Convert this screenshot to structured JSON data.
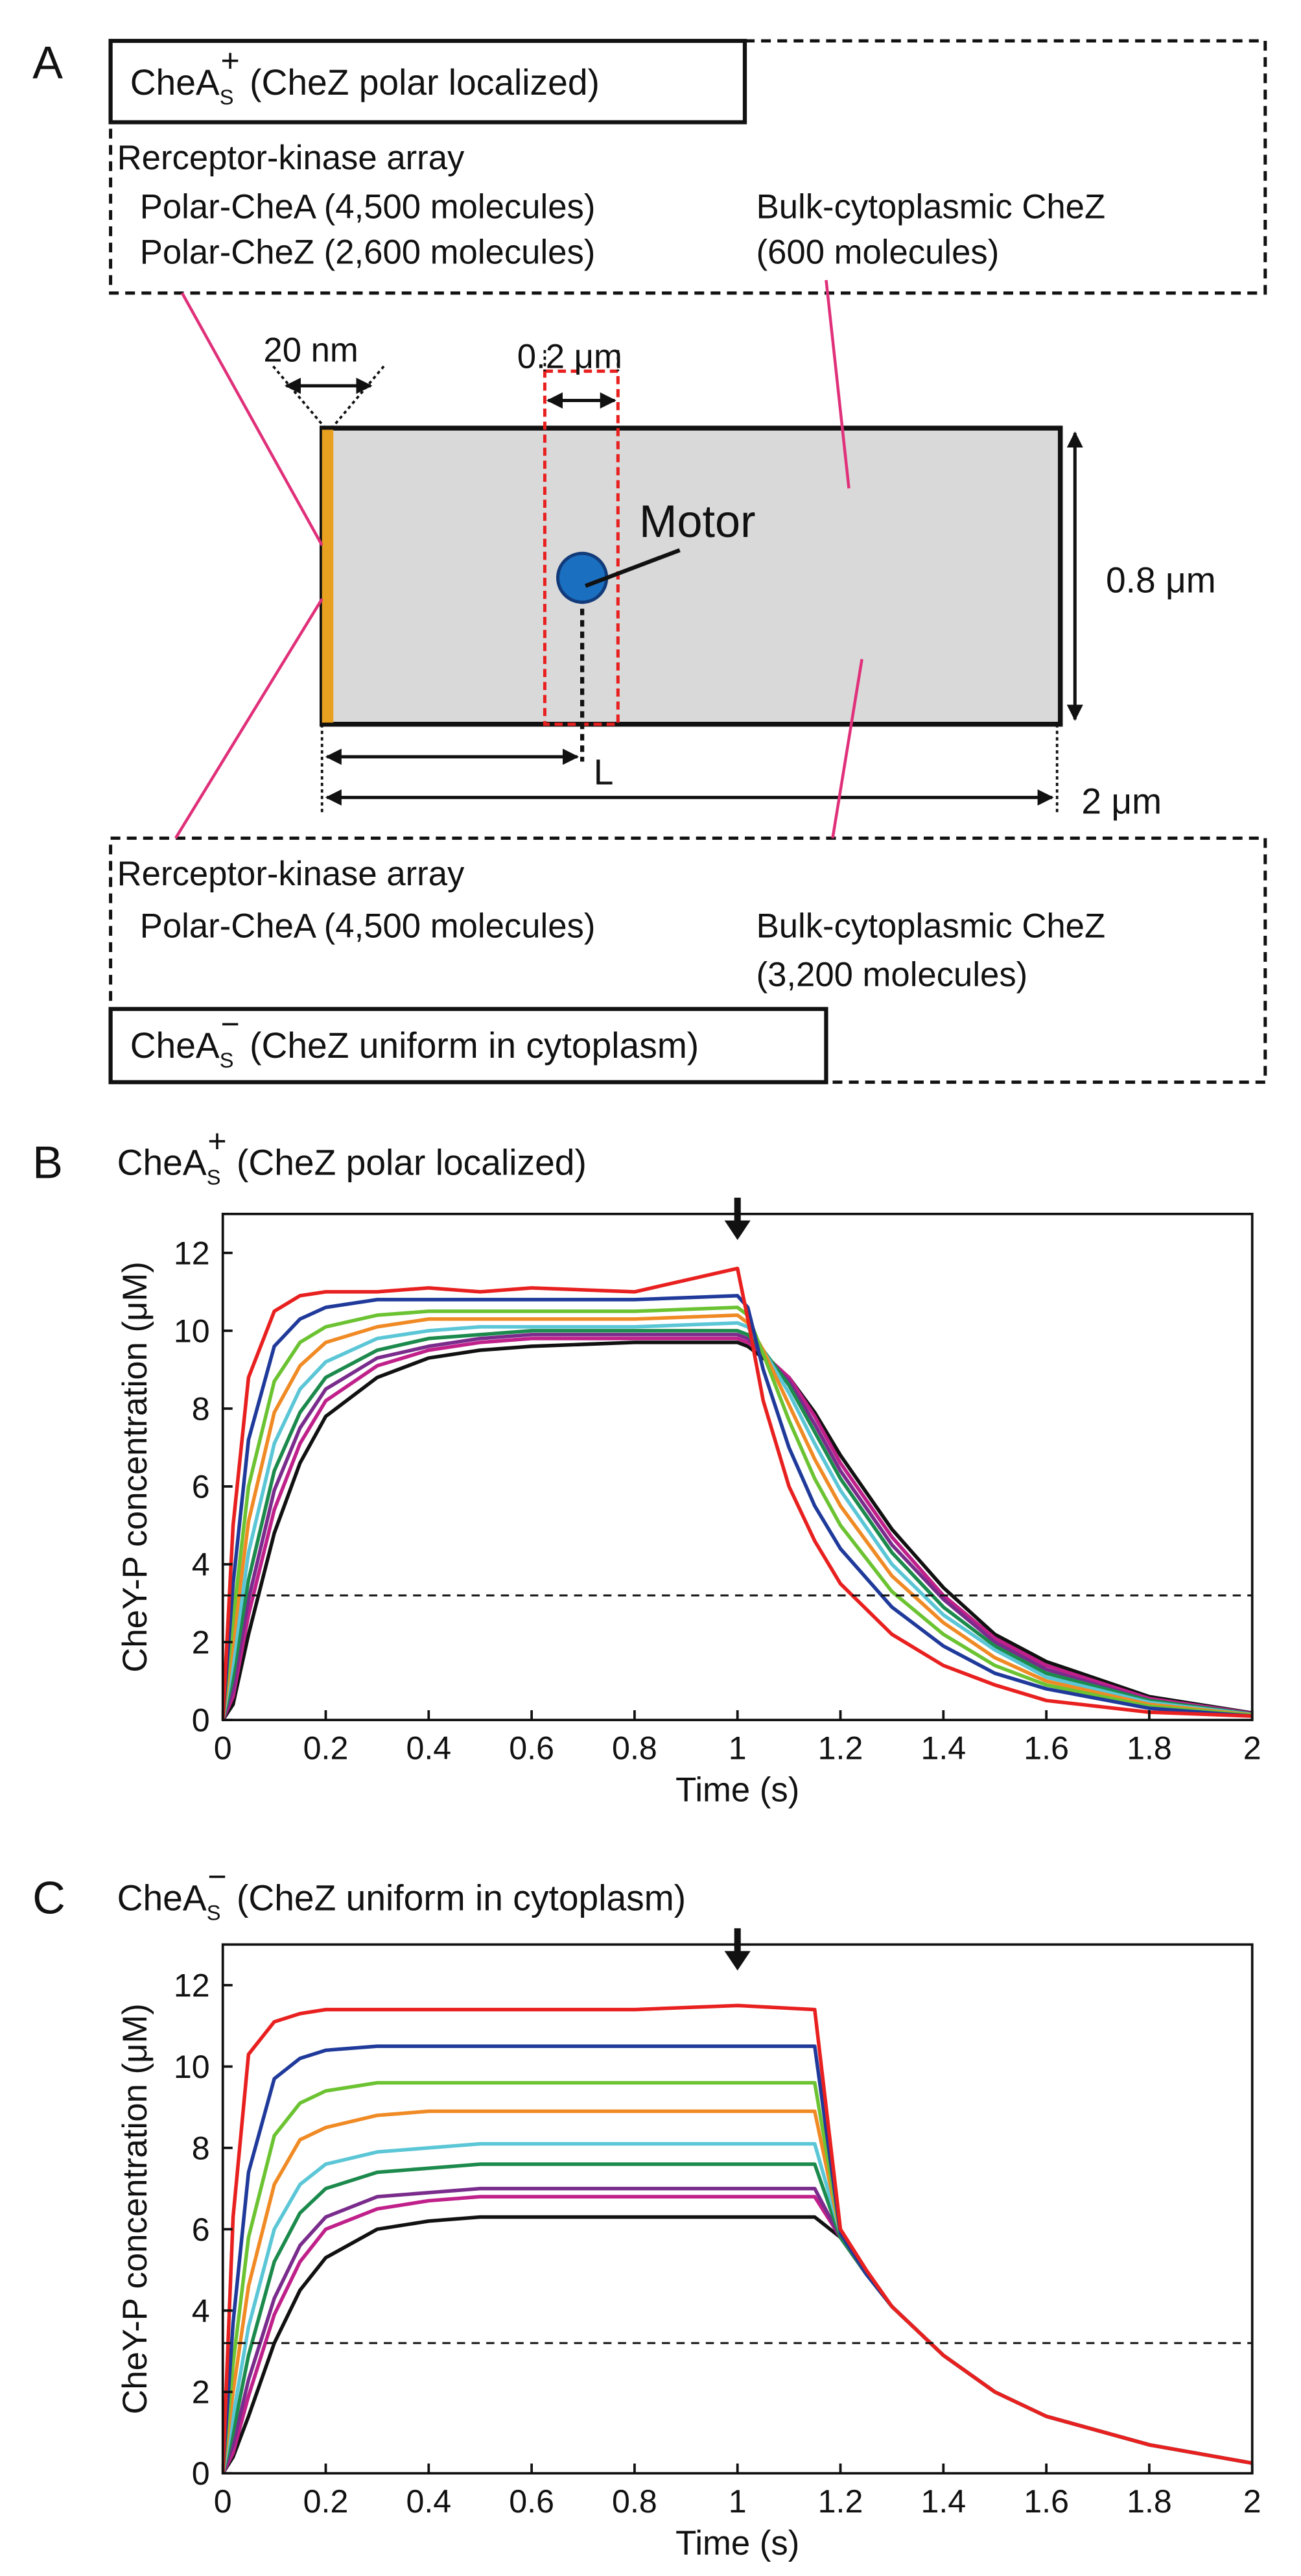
{
  "panel_a": {
    "label": "A",
    "top_box": {
      "title": "CheA",
      "title_sub": "S",
      "title_sup": "+",
      "title_rest": " (CheZ polar localized)",
      "array_label": "Rerceptor-kinase array",
      "polar_chea": "Polar-CheA (4,500 molecules)",
      "polar_chez": "Polar-CheZ (2,600 molecules)",
      "bulk_label": "Bulk-cytoplasmic CheZ",
      "bulk_count": "(600 molecules)"
    },
    "bottom_box": {
      "title": "CheA",
      "title_sub": "S",
      "title_sup": "−",
      "title_rest": " (CheZ uniform in cytoplasm)",
      "array_label": "Rerceptor-kinase array",
      "polar_chea": "Polar-CheA (4,500 molecules)",
      "bulk_label": "Bulk-cytoplasmic CheZ",
      "bulk_count": "(3,200 molecules)"
    },
    "array_width": "20 nm",
    "motor_window": "0.2 μm",
    "motor": "Motor",
    "cell_width": "0.8 μm",
    "distance": "L",
    "cell_length": "2 μm"
  },
  "chart_data": [
    {
      "type": "line",
      "label": "B",
      "title": "CheA",
      "title_sub": "S",
      "title_sup": "+",
      "title_rest": " (CheZ polar localized)",
      "xlabel": "Time (s)",
      "ylabel": "CheY-P concentration (μM)",
      "xlim": [
        0,
        2
      ],
      "ylim": [
        0,
        13
      ],
      "xticks": [
        0,
        0.2,
        0.4,
        0.6,
        0.8,
        1,
        1.2,
        1.4,
        1.6,
        1.8,
        2
      ],
      "yticks": [
        0,
        2,
        4,
        6,
        8,
        10,
        12
      ],
      "hline": 3.2,
      "arrow_x": 1.0,
      "x": [
        0,
        0.02,
        0.05,
        0.1,
        0.15,
        0.2,
        0.3,
        0.4,
        0.5,
        0.6,
        0.8,
        1.0,
        1.02,
        1.05,
        1.1,
        1.15,
        1.2,
        1.3,
        1.4,
        1.5,
        1.6,
        1.8,
        2.0
      ],
      "series": [
        {
          "color": "#111111",
          "values": [
            0,
            0.4,
            2.2,
            4.8,
            6.6,
            7.8,
            8.8,
            9.3,
            9.5,
            9.6,
            9.7,
            9.7,
            9.6,
            9.3,
            8.8,
            7.9,
            6.8,
            4.9,
            3.4,
            2.2,
            1.5,
            0.6,
            0.18
          ]
        },
        {
          "color": "#c0208a",
          "values": [
            0,
            0.6,
            2.7,
            5.4,
            7.1,
            8.2,
            9.1,
            9.5,
            9.7,
            9.8,
            9.8,
            9.8,
            9.7,
            9.4,
            8.8,
            7.8,
            6.6,
            4.7,
            3.2,
            2.1,
            1.4,
            0.55,
            0.17
          ]
        },
        {
          "color": "#7a2c8c",
          "values": [
            0,
            0.8,
            3.1,
            5.9,
            7.5,
            8.5,
            9.3,
            9.6,
            9.8,
            9.9,
            9.9,
            9.9,
            9.8,
            9.4,
            8.7,
            7.6,
            6.4,
            4.5,
            3.1,
            2.0,
            1.3,
            0.5,
            0.16
          ]
        },
        {
          "color": "#1c8a4c",
          "values": [
            0,
            1.1,
            3.6,
            6.4,
            7.9,
            8.8,
            9.5,
            9.8,
            9.9,
            10.0,
            10.0,
            10.0,
            9.9,
            9.5,
            8.6,
            7.4,
            6.2,
            4.3,
            2.9,
            1.9,
            1.2,
            0.5,
            0.15
          ]
        },
        {
          "color": "#5bc6d6",
          "values": [
            0,
            1.5,
            4.3,
            7.1,
            8.5,
            9.2,
            9.8,
            10.0,
            10.1,
            10.1,
            10.1,
            10.2,
            10.1,
            9.5,
            8.4,
            7.1,
            5.9,
            4.0,
            2.7,
            1.8,
            1.1,
            0.45,
            0.14
          ]
        },
        {
          "color": "#f08a24",
          "values": [
            0,
            2.0,
            5.1,
            7.9,
            9.1,
            9.7,
            10.1,
            10.3,
            10.3,
            10.3,
            10.3,
            10.4,
            10.2,
            9.5,
            8.1,
            6.7,
            5.5,
            3.7,
            2.5,
            1.6,
            1.0,
            0.4,
            0.13
          ]
        },
        {
          "color": "#6cc332",
          "values": [
            0,
            2.6,
            6.0,
            8.7,
            9.7,
            10.1,
            10.4,
            10.5,
            10.5,
            10.5,
            10.5,
            10.6,
            10.4,
            9.4,
            7.7,
            6.2,
            5.0,
            3.3,
            2.2,
            1.4,
            0.9,
            0.35,
            0.12
          ]
        },
        {
          "color": "#1f3a9a",
          "values": [
            0,
            3.5,
            7.2,
            9.6,
            10.3,
            10.6,
            10.8,
            10.8,
            10.8,
            10.8,
            10.8,
            10.9,
            10.6,
            9.0,
            7.0,
            5.5,
            4.4,
            2.9,
            1.9,
            1.2,
            0.8,
            0.3,
            0.1
          ]
        },
        {
          "color": "#e8201f",
          "values": [
            0,
            5.0,
            8.8,
            10.5,
            10.9,
            11.0,
            11.0,
            11.1,
            11.0,
            11.1,
            11.0,
            11.6,
            10.3,
            8.2,
            6.0,
            4.6,
            3.5,
            2.2,
            1.4,
            0.9,
            0.5,
            0.2,
            0.1
          ]
        }
      ]
    },
    {
      "type": "line",
      "label": "C",
      "title": "CheA",
      "title_sub": "S",
      "title_sup": "−",
      "title_rest": " (CheZ uniform in cytoplasm)",
      "xlabel": "Time (s)",
      "ylabel": "CheY-P concentration (μM)",
      "xlim": [
        0,
        2
      ],
      "ylim": [
        0,
        13
      ],
      "xticks": [
        0,
        0.2,
        0.4,
        0.6,
        0.8,
        1,
        1.2,
        1.4,
        1.6,
        1.8,
        2
      ],
      "yticks": [
        0,
        2,
        4,
        6,
        8,
        10,
        12
      ],
      "hline": 3.2,
      "arrow_x": 1.0,
      "x": [
        0,
        0.02,
        0.05,
        0.1,
        0.15,
        0.2,
        0.3,
        0.4,
        0.5,
        0.6,
        0.8,
        1.0,
        1.15,
        1.2,
        1.25,
        1.3,
        1.4,
        1.5,
        1.6,
        1.8,
        2.0
      ],
      "series": [
        {
          "color": "#111111",
          "values": [
            0,
            0.4,
            1.4,
            3.2,
            4.5,
            5.3,
            6.0,
            6.2,
            6.3,
            6.3,
            6.3,
            6.3,
            6.3,
            5.8,
            4.9,
            4.1,
            2.9,
            2.0,
            1.4,
            0.7,
            0.25
          ]
        },
        {
          "color": "#c0208a",
          "values": [
            0,
            0.5,
            1.9,
            3.9,
            5.2,
            6.0,
            6.5,
            6.7,
            6.8,
            6.8,
            6.8,
            6.8,
            6.8,
            5.8,
            4.9,
            4.1,
            2.9,
            2.0,
            1.4,
            0.7,
            0.25
          ]
        },
        {
          "color": "#7a2c8c",
          "values": [
            0,
            0.7,
            2.3,
            4.3,
            5.6,
            6.3,
            6.8,
            6.9,
            7.0,
            7.0,
            7.0,
            7.0,
            7.0,
            5.8,
            4.9,
            4.1,
            2.9,
            2.0,
            1.4,
            0.7,
            0.25
          ]
        },
        {
          "color": "#1c8a4c",
          "values": [
            0,
            1.0,
            2.9,
            5.2,
            6.4,
            7.0,
            7.4,
            7.5,
            7.6,
            7.6,
            7.6,
            7.6,
            7.6,
            5.8,
            4.9,
            4.1,
            2.9,
            2.0,
            1.4,
            0.7,
            0.25
          ]
        },
        {
          "color": "#5bc6d6",
          "values": [
            0,
            1.4,
            3.6,
            6.0,
            7.1,
            7.6,
            7.9,
            8.0,
            8.1,
            8.1,
            8.1,
            8.1,
            8.1,
            5.9,
            4.9,
            4.1,
            2.9,
            2.0,
            1.4,
            0.7,
            0.25
          ]
        },
        {
          "color": "#f08a24",
          "values": [
            0,
            2.0,
            4.6,
            7.1,
            8.2,
            8.5,
            8.8,
            8.9,
            8.9,
            8.9,
            8.9,
            8.9,
            8.9,
            5.9,
            4.9,
            4.1,
            2.9,
            2.0,
            1.4,
            0.7,
            0.25
          ]
        },
        {
          "color": "#6cc332",
          "values": [
            0,
            2.7,
            5.8,
            8.3,
            9.1,
            9.4,
            9.6,
            9.6,
            9.6,
            9.6,
            9.6,
            9.6,
            9.6,
            5.9,
            4.9,
            4.1,
            2.9,
            2.0,
            1.4,
            0.7,
            0.25
          ]
        },
        {
          "color": "#1f3a9a",
          "values": [
            0,
            3.7,
            7.4,
            9.7,
            10.2,
            10.4,
            10.5,
            10.5,
            10.5,
            10.5,
            10.5,
            10.5,
            10.5,
            5.9,
            4.9,
            4.1,
            2.9,
            2.0,
            1.4,
            0.7,
            0.25
          ]
        },
        {
          "color": "#e8201f",
          "values": [
            0,
            6.3,
            10.3,
            11.1,
            11.3,
            11.4,
            11.4,
            11.4,
            11.4,
            11.4,
            11.4,
            11.5,
            11.4,
            6.0,
            5.0,
            4.1,
            2.9,
            2.0,
            1.4,
            0.7,
            0.25
          ]
        }
      ]
    }
  ]
}
